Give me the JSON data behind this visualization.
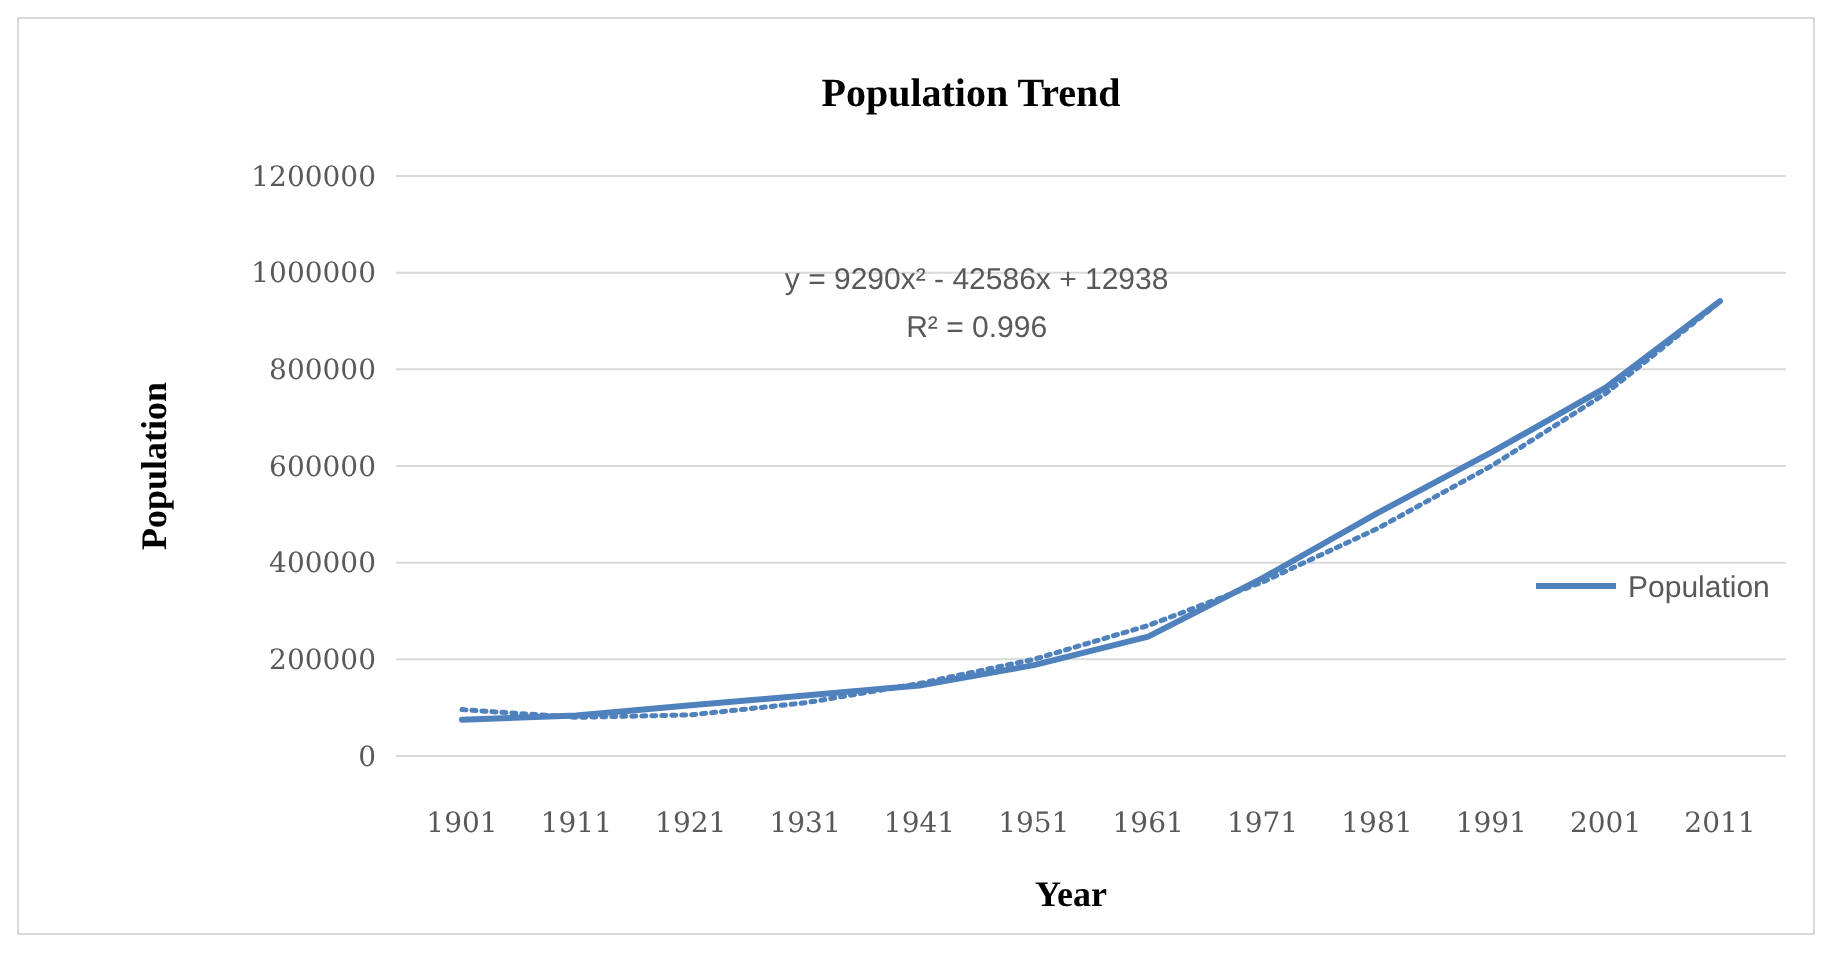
{
  "chart_data": {
    "type": "line",
    "title": "Population Trend",
    "xlabel": "Year",
    "ylabel": "Population",
    "categories": [
      "1901",
      "1911",
      "1921",
      "1931",
      "1941",
      "1951",
      "1961",
      "1971",
      "1981",
      "1991",
      "2001",
      "2011"
    ],
    "series": [
      {
        "name": "Population",
        "color": "#4f81bd",
        "values": [
          75000,
          84000,
          105000,
          125000,
          146000,
          188000,
          247000,
          368000,
          502000,
          628000,
          762000,
          941000
        ]
      },
      {
        "color": "#4f81bd",
        "line_style": "dotted",
        "values": [
          96000,
          80000,
          85000,
          110000,
          150000,
          200000,
          270000,
          360000,
          470000,
          600000,
          750000,
          940000
        ]
      }
    ],
    "ylim": [
      0,
      1200000
    ],
    "yticks": [
      0,
      200000,
      400000,
      600000,
      800000,
      1000000,
      1200000
    ],
    "grid": "y",
    "legend": "right",
    "annotations": [
      "y = 9290x² - 42586x + 12938",
      "R² = 0.996"
    ]
  }
}
